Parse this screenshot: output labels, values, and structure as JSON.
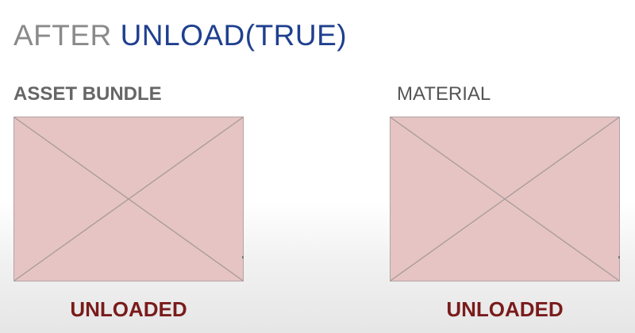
{
  "title": {
    "prefix": "AFTER",
    "highlight": "UNLOAD(TRUE)"
  },
  "panels": [
    {
      "label": "ASSET BUNDLE",
      "status": "UNLOADED"
    },
    {
      "label": "MATERIAL",
      "status": "UNLOADED"
    }
  ],
  "colors": {
    "title_prefix": "#8a8a8a",
    "title_highlight": "#1f3f8f",
    "placeholder_fill": "#e6c4c4",
    "placeholder_stroke": "#b3a3a3",
    "status": "#7a1b1b"
  }
}
